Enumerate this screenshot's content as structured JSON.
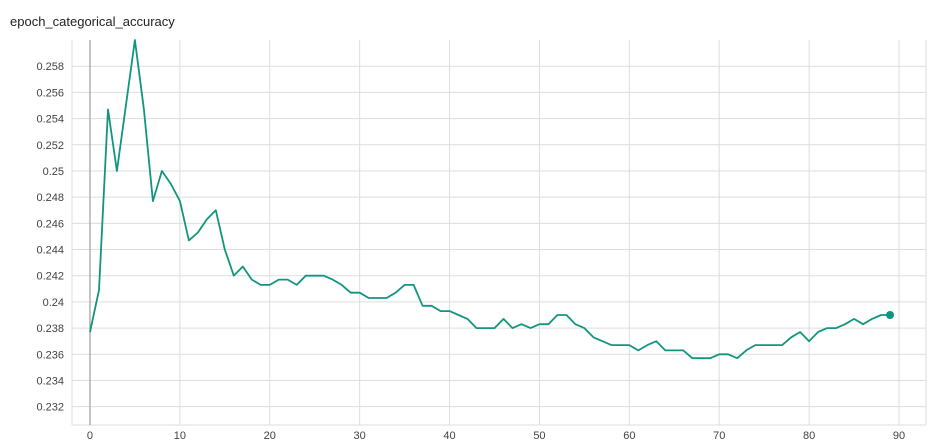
{
  "chart_data": {
    "type": "line",
    "title": "epoch_categorical_accuracy",
    "xlabel": "",
    "ylabel": "",
    "xlim": [
      -2,
      93
    ],
    "ylim": [
      0.2306,
      0.26
    ],
    "x_ticks": [
      0,
      10,
      20,
      30,
      40,
      50,
      60,
      70,
      80,
      90
    ],
    "x_tick_labels": [
      "0",
      "10",
      "20",
      "30",
      "40",
      "50",
      "60",
      "70",
      "80",
      "90"
    ],
    "y_ticks": [
      0.232,
      0.234,
      0.236,
      0.238,
      0.24,
      0.242,
      0.244,
      0.246,
      0.248,
      0.25,
      0.252,
      0.254,
      0.256,
      0.258
    ],
    "y_tick_labels": [
      "0.232",
      "0.234",
      "0.236",
      "0.238",
      "0.24",
      "0.242",
      "0.244",
      "0.246",
      "0.248",
      "0.25",
      "0.252",
      "0.254",
      "0.256",
      "0.258"
    ],
    "grid": true,
    "series": [
      {
        "color": "#12957f",
        "x": [
          0,
          1,
          2,
          3,
          4,
          5,
          6,
          7,
          8,
          9,
          10,
          11,
          12,
          13,
          14,
          15,
          16,
          17,
          18,
          19,
          20,
          21,
          22,
          23,
          24,
          25,
          26,
          27,
          28,
          29,
          30,
          31,
          32,
          33,
          34,
          35,
          36,
          37,
          38,
          39,
          40,
          41,
          42,
          43,
          44,
          45,
          46,
          47,
          48,
          49,
          50,
          51,
          52,
          53,
          54,
          55,
          56,
          57,
          58,
          59,
          60,
          61,
          62,
          63,
          64,
          65,
          66,
          67,
          68,
          69,
          70,
          71,
          72,
          73,
          74,
          75,
          76,
          77,
          78,
          79,
          80,
          81,
          82,
          83,
          84,
          85,
          86,
          87,
          88,
          89
        ],
        "y": [
          0.2377,
          0.2409,
          0.2547,
          0.25,
          0.255,
          0.26,
          0.2547,
          0.2477,
          0.25,
          0.249,
          0.2477,
          0.2447,
          0.2453,
          0.2463,
          0.247,
          0.244,
          0.242,
          0.2427,
          0.2417,
          0.2413,
          0.2413,
          0.2417,
          0.2417,
          0.2413,
          0.242,
          0.242,
          0.242,
          0.2417,
          0.2413,
          0.2407,
          0.2407,
          0.2403,
          0.2403,
          0.2403,
          0.2407,
          0.2413,
          0.2413,
          0.2397,
          0.2397,
          0.2393,
          0.2393,
          0.239,
          0.2387,
          0.238,
          0.238,
          0.238,
          0.2387,
          0.238,
          0.2383,
          0.238,
          0.2383,
          0.2383,
          0.239,
          0.239,
          0.2383,
          0.238,
          0.2373,
          0.237,
          0.2367,
          0.2367,
          0.2367,
          0.2363,
          0.2367,
          0.237,
          0.2363,
          0.2363,
          0.2363,
          0.2357,
          0.2357,
          0.2357,
          0.236,
          0.236,
          0.2357,
          0.2363,
          0.2367,
          0.2367,
          0.2367,
          0.2367,
          0.2373,
          0.2377,
          0.237,
          0.2377,
          0.238,
          0.238,
          0.2383,
          0.2387,
          0.2383,
          0.2387,
          0.239,
          0.239
        ]
      }
    ]
  }
}
